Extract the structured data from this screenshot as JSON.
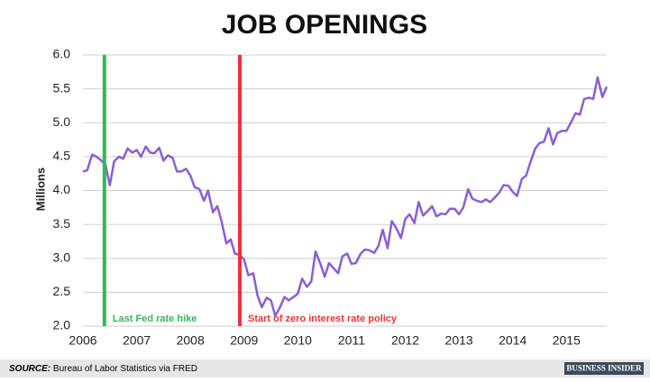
{
  "chart_data": {
    "type": "line",
    "title": "JOB OPENINGS",
    "ylabel": "Millions",
    "x": [
      2006.0,
      2006.08,
      2006.17,
      2006.25,
      2006.33,
      2006.42,
      2006.5,
      2006.58,
      2006.67,
      2006.75,
      2006.83,
      2006.92,
      2007.0,
      2007.08,
      2007.17,
      2007.25,
      2007.33,
      2007.42,
      2007.5,
      2007.58,
      2007.67,
      2007.75,
      2007.83,
      2007.92,
      2008.0,
      2008.08,
      2008.17,
      2008.25,
      2008.33,
      2008.42,
      2008.5,
      2008.58,
      2008.67,
      2008.75,
      2008.83,
      2008.92,
      2009.0,
      2009.08,
      2009.17,
      2009.25,
      2009.33,
      2009.42,
      2009.5,
      2009.58,
      2009.67,
      2009.75,
      2009.83,
      2009.92,
      2010.0,
      2010.08,
      2010.17,
      2010.25,
      2010.33,
      2010.42,
      2010.5,
      2010.58,
      2010.67,
      2010.75,
      2010.83,
      2010.92,
      2011.0,
      2011.08,
      2011.17,
      2011.25,
      2011.33,
      2011.42,
      2011.5,
      2011.58,
      2011.67,
      2011.75,
      2011.83,
      2011.92,
      2012.0,
      2012.08,
      2012.17,
      2012.25,
      2012.33,
      2012.42,
      2012.5,
      2012.58,
      2012.67,
      2012.75,
      2012.83,
      2012.92,
      2013.0,
      2013.08,
      2013.17,
      2013.25,
      2013.33,
      2013.42,
      2013.5,
      2013.58,
      2013.67,
      2013.75,
      2013.83,
      2013.92,
      2014.0,
      2014.08,
      2014.17,
      2014.25,
      2014.33,
      2014.42,
      2014.5,
      2014.58,
      2014.67,
      2014.75,
      2014.83,
      2014.92,
      2015.0,
      2015.08,
      2015.17,
      2015.25,
      2015.33,
      2015.42,
      2015.5,
      2015.58,
      2015.67,
      2015.75
    ],
    "series": [
      {
        "color": "#8b5fd4",
        "values": [
          4.28,
          4.3,
          4.53,
          4.5,
          4.45,
          4.38,
          4.08,
          4.43,
          4.5,
          4.47,
          4.62,
          4.56,
          4.6,
          4.5,
          4.65,
          4.56,
          4.55,
          4.63,
          4.44,
          4.52,
          4.48,
          4.28,
          4.28,
          4.32,
          4.22,
          4.05,
          4.02,
          3.85,
          4.0,
          3.68,
          3.77,
          3.55,
          3.22,
          3.28,
          3.07,
          3.05,
          2.98,
          2.75,
          2.78,
          2.45,
          2.28,
          2.42,
          2.38,
          2.15,
          2.28,
          2.43,
          2.38,
          2.43,
          2.48,
          2.7,
          2.58,
          2.66,
          3.1,
          2.92,
          2.73,
          2.93,
          2.85,
          2.78,
          3.03,
          3.07,
          2.92,
          2.93,
          3.07,
          3.13,
          3.12,
          3.08,
          3.18,
          3.42,
          3.15,
          3.55,
          3.45,
          3.3,
          3.58,
          3.65,
          3.52,
          3.83,
          3.63,
          3.7,
          3.77,
          3.62,
          3.66,
          3.65,
          3.73,
          3.73,
          3.65,
          3.75,
          4.02,
          3.88,
          3.85,
          3.83,
          3.87,
          3.83,
          3.9,
          3.97,
          4.08,
          4.07,
          3.98,
          3.92,
          4.17,
          4.22,
          4.42,
          4.62,
          4.7,
          4.72,
          4.92,
          4.68,
          4.85,
          4.88,
          4.88,
          5.0,
          5.14,
          5.12,
          5.35,
          5.37,
          5.35,
          5.67,
          5.38,
          5.53
        ]
      }
    ],
    "xlim": [
      2006,
      2015.75
    ],
    "xticks": [
      2006,
      2007,
      2008,
      2009,
      2010,
      2011,
      2012,
      2013,
      2014,
      2015
    ],
    "ylim": [
      2,
      6
    ],
    "yticks": [
      {
        "value": 2,
        "label": "2.0"
      },
      {
        "value": 2.5,
        "label": "2.5"
      },
      {
        "value": 3,
        "label": "3.0"
      },
      {
        "value": 3.5,
        "label": "3.5"
      },
      {
        "value": 4,
        "label": "4.0"
      },
      {
        "value": 4.5,
        "label": "4.5"
      },
      {
        "value": 5,
        "label": "5.0"
      },
      {
        "value": 5.5,
        "label": "5.5"
      },
      {
        "value": 6,
        "label": "6.0"
      }
    ],
    "grid": true,
    "vlines": [
      {
        "x": 2006.4,
        "label": "Last Fed rate hike",
        "color": "#3cb35a"
      },
      {
        "x": 2008.92,
        "label": "Start of zero interest rate policy",
        "color": "#e8353a"
      }
    ],
    "source_label": "SOURCE:",
    "source": "Bureau of Labor Statistics via FRED",
    "logo": "BUSINESS INSIDER"
  }
}
